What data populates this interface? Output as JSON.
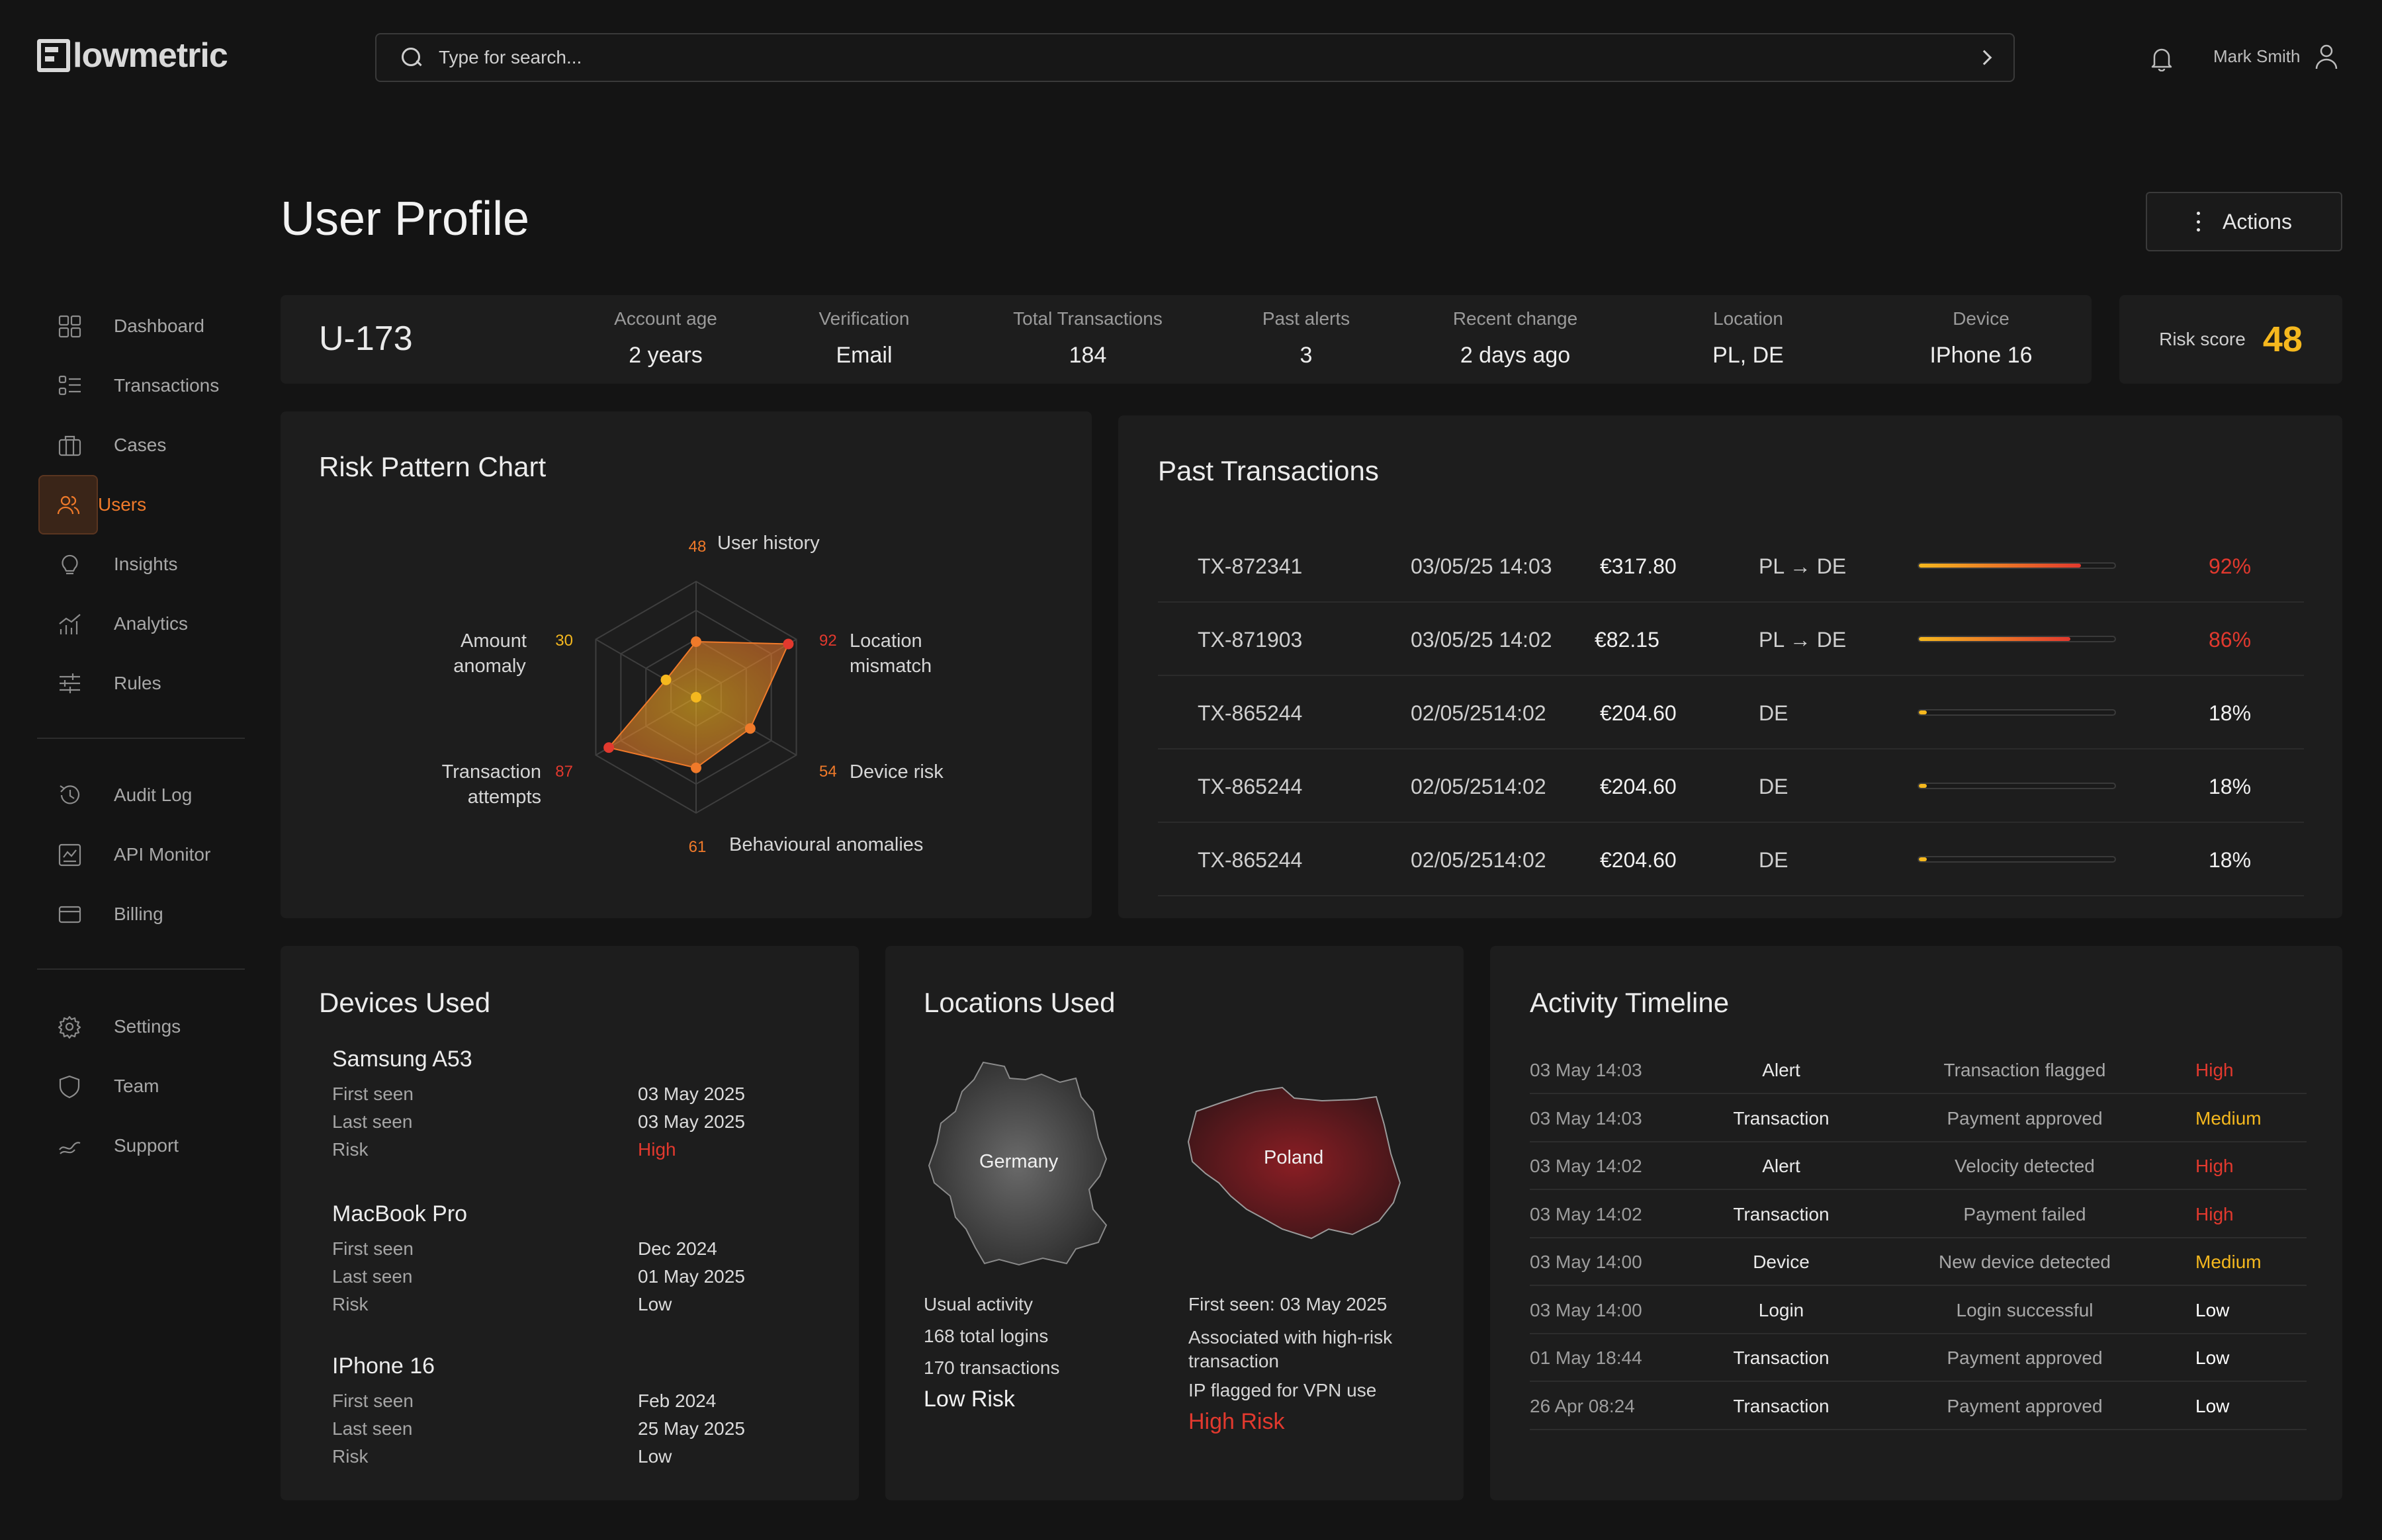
{
  "app": {
    "name": "lowmetric"
  },
  "header": {
    "search_placeholder": "Type for search...",
    "user_name": "Mark Smith"
  },
  "sidebar": {
    "items": [
      {
        "label": "Dashboard",
        "icon": "dashboard-icon"
      },
      {
        "label": "Transactions",
        "icon": "transactions-icon"
      },
      {
        "label": "Cases",
        "icon": "cases-icon"
      },
      {
        "label": "Users",
        "icon": "users-icon",
        "active": true
      },
      {
        "label": "Insights",
        "icon": "insights-icon"
      },
      {
        "label": "Analytics",
        "icon": "analytics-icon"
      },
      {
        "label": "Rules",
        "icon": "rules-icon"
      }
    ],
    "items2": [
      {
        "label": "Audit Log",
        "icon": "audit-log-icon"
      },
      {
        "label": "API Monitor",
        "icon": "api-monitor-icon"
      },
      {
        "label": "Billing",
        "icon": "billing-icon"
      }
    ],
    "items3": [
      {
        "label": "Settings",
        "icon": "gear-icon"
      },
      {
        "label": "Team",
        "icon": "shield-icon"
      },
      {
        "label": "Support",
        "icon": "support-icon"
      }
    ]
  },
  "page": {
    "title": "User Profile",
    "actions_label": "Actions"
  },
  "summary": {
    "user_id": "U-173",
    "stats": [
      {
        "label": "Account age",
        "value": "2 years"
      },
      {
        "label": "Verification",
        "value": "Email"
      },
      {
        "label": "Total Transactions",
        "value": "184"
      },
      {
        "label": "Past alerts",
        "value": "3"
      },
      {
        "label": "Recent change",
        "value": "2 days ago"
      },
      {
        "label": "Location",
        "value": "PL, DE"
      },
      {
        "label": "Device",
        "value": "IPhone 16"
      }
    ],
    "risk_label": "Risk score",
    "risk_value": "48"
  },
  "risk_chart": {
    "title": "Risk Pattern Chart",
    "max": 100,
    "axes": [
      {
        "label": "User history",
        "value": 48
      },
      {
        "label": "Location mismatch",
        "value": 92
      },
      {
        "label": "Device risk",
        "value": 54
      },
      {
        "label": "Behavioural anomalies",
        "value": 61
      },
      {
        "label": "Transaction attempts",
        "value": 87
      },
      {
        "label": "Amount anomaly",
        "value": 30
      }
    ],
    "colors": {
      "high": "#e2392e",
      "mid": "#f07a2a",
      "low": "#f5b81e"
    }
  },
  "past_transactions": {
    "title": "Past Transactions",
    "rows": [
      {
        "id": "TX-872341",
        "datetime": "03/05/25 14:03",
        "amount": "€317.80",
        "route": "PL → DE",
        "risk": 0.92,
        "risk_label": "92%",
        "level": "high"
      },
      {
        "id": "TX-871903",
        "datetime": "03/05/25 14:02",
        "amount": "€82.15",
        "route": "PL → DE",
        "risk": 0.86,
        "risk_label": "86%",
        "level": "high"
      },
      {
        "id": "TX-865244",
        "datetime": "02/05/2514:02",
        "amount": "€204.60",
        "route": "DE",
        "risk": 0.18,
        "risk_label": "18%",
        "level": "low"
      },
      {
        "id": "TX-865244",
        "datetime": "02/05/2514:02",
        "amount": "€204.60",
        "route": "DE",
        "risk": 0.18,
        "risk_label": "18%",
        "level": "low"
      },
      {
        "id": "TX-865244",
        "datetime": "02/05/2514:02",
        "amount": "€204.60",
        "route": "DE",
        "risk": 0.18,
        "risk_label": "18%",
        "level": "low"
      }
    ]
  },
  "devices": {
    "title": "Devices Used",
    "labels": {
      "first": "First seen",
      "last": "Last seen",
      "risk": "Risk"
    },
    "items": [
      {
        "name": "Samsung A53",
        "first": "03 May 2025",
        "last": "03 May 2025",
        "risk": "High"
      },
      {
        "name": "MacBook Pro",
        "first": "Dec 2024",
        "last": "01 May 2025",
        "risk": "Low"
      },
      {
        "name": "IPhone 16",
        "first": "Feb 2024",
        "last": "25 May 2025",
        "risk": "Low"
      }
    ]
  },
  "locations": {
    "title": "Locations Used",
    "germany": {
      "name": "Germany",
      "lines": [
        "Usual activity",
        "168 total logins",
        "170 transactions"
      ],
      "risk": "Low Risk"
    },
    "poland": {
      "name": "Poland",
      "lines": [
        "First seen: 03 May 2025",
        "Associated with high-risk transaction",
        "IP flagged for VPN use"
      ],
      "risk": "High Risk"
    }
  },
  "timeline": {
    "title": "Activity Timeline",
    "rows": [
      {
        "time": "03 May 14:03",
        "type": "Alert",
        "event": "Transaction flagged",
        "severity": "High"
      },
      {
        "time": "03 May 14:03",
        "type": "Transaction",
        "event": "Payment approved",
        "severity": "Medium"
      },
      {
        "time": "03 May 14:02",
        "type": "Alert",
        "event": "Velocity detected",
        "severity": "High"
      },
      {
        "time": "03 May 14:02",
        "type": "Transaction",
        "event": "Payment failed",
        "severity": "High"
      },
      {
        "time": "03 May 14:00",
        "type": "Device",
        "event": "New device detected",
        "severity": "Medium"
      },
      {
        "time": "03 May 14:00",
        "type": "Login",
        "event": "Login successful",
        "severity": "Low"
      },
      {
        "time": "01 May 18:44",
        "type": "Transaction",
        "event": "Payment approved",
        "severity": "Low"
      },
      {
        "time": "26 Apr 08:24",
        "type": "Transaction",
        "event": "Payment approved",
        "severity": "Low"
      }
    ]
  },
  "colors": {
    "accent_orange": "#f07a2a",
    "high": "#e2392e",
    "medium": "#f5b81e",
    "low": "#ffffff"
  }
}
